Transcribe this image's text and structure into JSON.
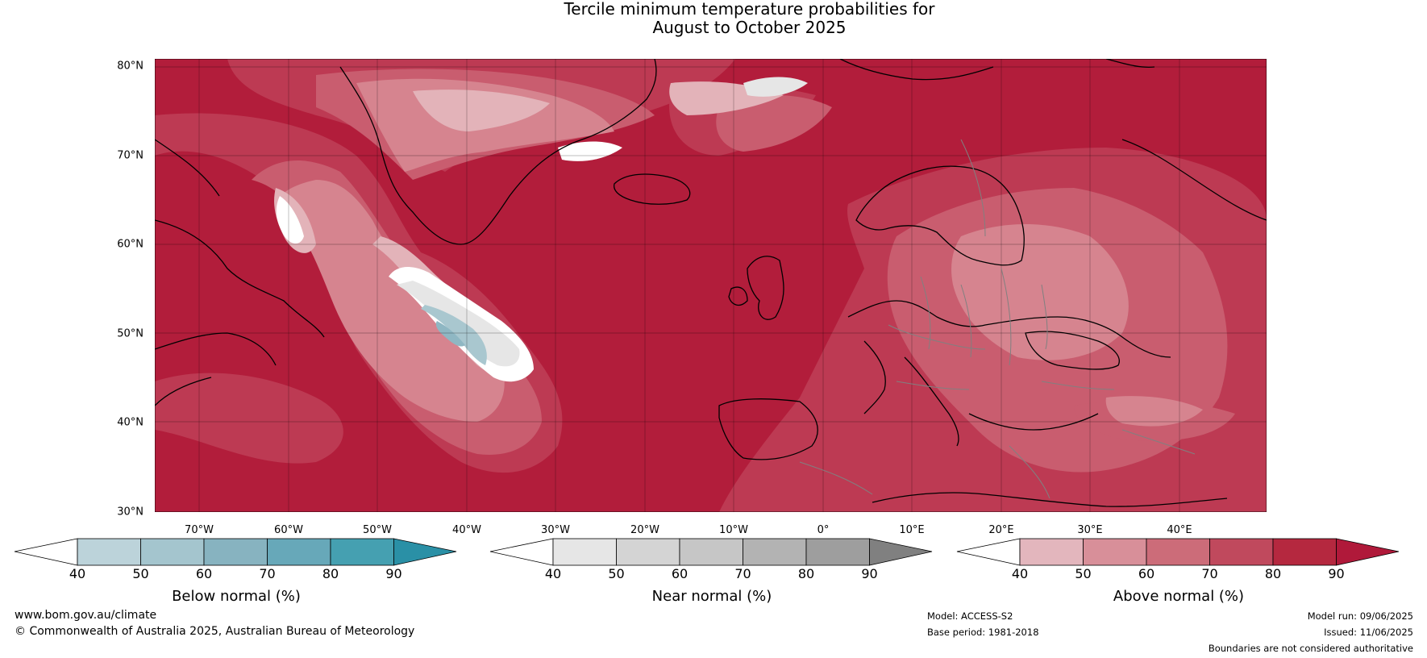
{
  "title": {
    "line1": "Tercile minimum temperature probabilities for",
    "line2": "August to October 2025"
  },
  "map": {
    "lat_labels": [
      "80°N",
      "70°N",
      "60°N",
      "50°N",
      "40°N",
      "30°N"
    ],
    "lon_labels": [
      "70°W",
      "60°W",
      "50°W",
      "40°W",
      "30°W",
      "20°W",
      "10°W",
      "0°",
      "10°E",
      "20°E",
      "30°E",
      "40°E"
    ],
    "colors": {
      "above_90": "#b21d3b",
      "above_80": "#bd3a53",
      "above_70": "#c95d6f",
      "above_60": "#d6848f",
      "above_50": "#e3b3b9",
      "near_40": "#ffffff",
      "near_50": "#e6e6e6",
      "below_50": "#a9c7cf",
      "below_60": "#8fb7c3",
      "coastline": "#000000",
      "border": "#808080"
    }
  },
  "colorbars": [
    {
      "label": "Below normal (%)",
      "ticks": [
        "40",
        "50",
        "60",
        "70",
        "80",
        "90"
      ],
      "colors": [
        "#ffffff",
        "#bcd3da",
        "#a4c5ce",
        "#87b3c0",
        "#67a8b9",
        "#45a0b1",
        "#2a90a6"
      ]
    },
    {
      "label": "Near normal (%)",
      "ticks": [
        "40",
        "50",
        "60",
        "70",
        "80",
        "90"
      ],
      "colors": [
        "#ffffff",
        "#e6e6e6",
        "#d4d4d4",
        "#c6c6c6",
        "#b3b3b3",
        "#9e9e9e",
        "#808080"
      ]
    },
    {
      "label": "Above normal (%)",
      "ticks": [
        "40",
        "50",
        "60",
        "70",
        "80",
        "90"
      ],
      "colors": [
        "#ffffff",
        "#e3b6bd",
        "#d88f99",
        "#cc6c79",
        "#c0495d",
        "#b5283f",
        "#b0193a"
      ]
    }
  ],
  "footer": {
    "website": "www.bom.gov.au/climate",
    "copyright": "© Commonwealth of Australia 2025, Australian Bureau of Meteorology",
    "model": "Model: ACCESS-S2",
    "base_period": "Base period: 1981-2018",
    "model_run": "Model run: 09/06/2025",
    "issued": "Issued: 11/06/2025",
    "disclaimer": "Boundaries are not considered authoritative"
  }
}
